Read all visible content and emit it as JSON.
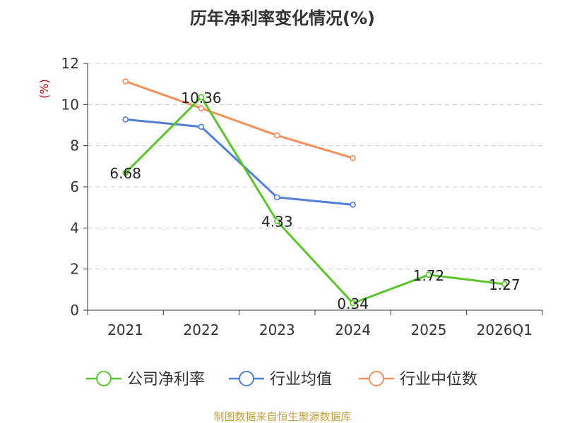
{
  "chart_data": {
    "type": "line",
    "title": "历年净利率变化情况(%)",
    "ylabel": "(%)",
    "xlabel": "",
    "categories": [
      "2021",
      "2022",
      "2023",
      "2024",
      "2025",
      "2026Q1"
    ],
    "ylim": [
      0,
      12
    ],
    "yticks": [
      0,
      2,
      4,
      6,
      8,
      10,
      12
    ],
    "grid": true,
    "legend_position": "bottom",
    "series": [
      {
        "name": "公司净利率",
        "color": "#5ac52b",
        "values": [
          6.68,
          10.36,
          4.33,
          0.34,
          1.72,
          1.27
        ],
        "labels": [
          "6.68",
          "10.36",
          "4.33",
          "0.34",
          "1.72",
          "1.27"
        ]
      },
      {
        "name": "行业均值",
        "color": "#4f7fd6",
        "values": [
          9.28,
          8.92,
          5.49,
          5.13,
          null,
          null
        ]
      },
      {
        "name": "行业中位数",
        "color": "#f78f5a",
        "values": [
          11.13,
          9.82,
          8.5,
          7.4,
          null,
          null
        ]
      }
    ]
  },
  "source": "制图数据来自恒生聚源数据库",
  "colors": {
    "axis": "#333333",
    "grid": "#cccccc",
    "ylabel": "#cc0000",
    "source": "#c8a03c"
  }
}
